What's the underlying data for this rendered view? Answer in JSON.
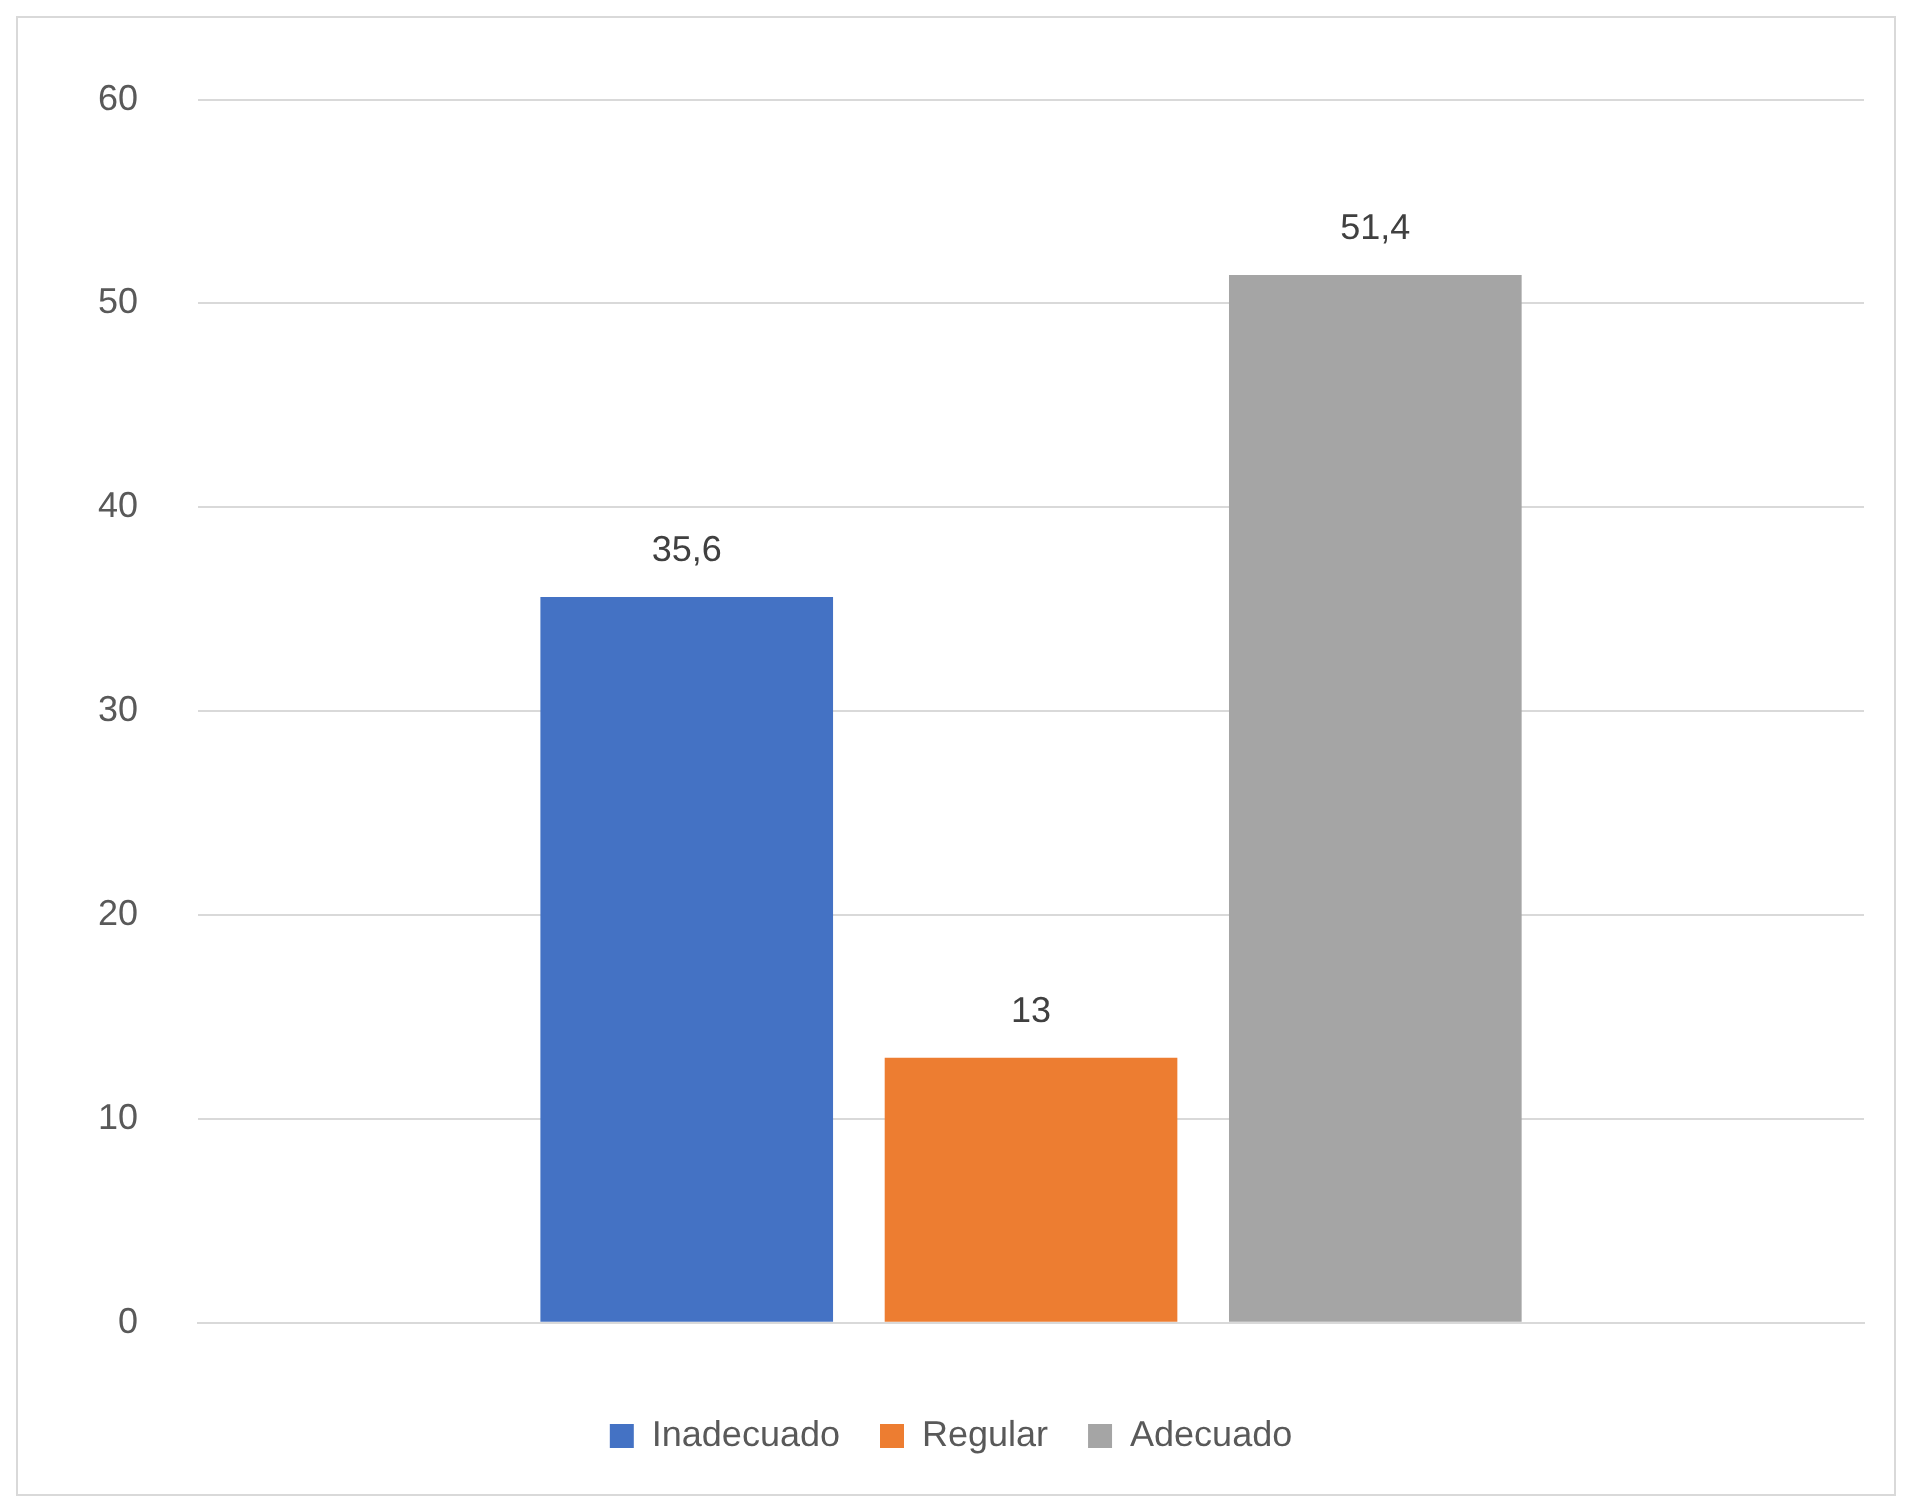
{
  "chart_data": {
    "type": "bar",
    "categories": [
      null
    ],
    "series": [
      {
        "name": "Inadecuado",
        "color": "#4472c4",
        "values": [
          35.6
        ],
        "value_labels": [
          "35,6"
        ]
      },
      {
        "name": "Regular",
        "color": "#ed7d31",
        "values": [
          13
        ],
        "value_labels": [
          "13"
        ]
      },
      {
        "name": "Adecuado",
        "color": "#a5a5a5",
        "values": [
          51.4
        ],
        "value_labels": [
          "51,4"
        ]
      }
    ],
    "ylim": [
      0,
      60
    ],
    "yticks": [
      0,
      10,
      20,
      30,
      40,
      50,
      60
    ],
    "grid": "y",
    "legend": "bottom"
  }
}
